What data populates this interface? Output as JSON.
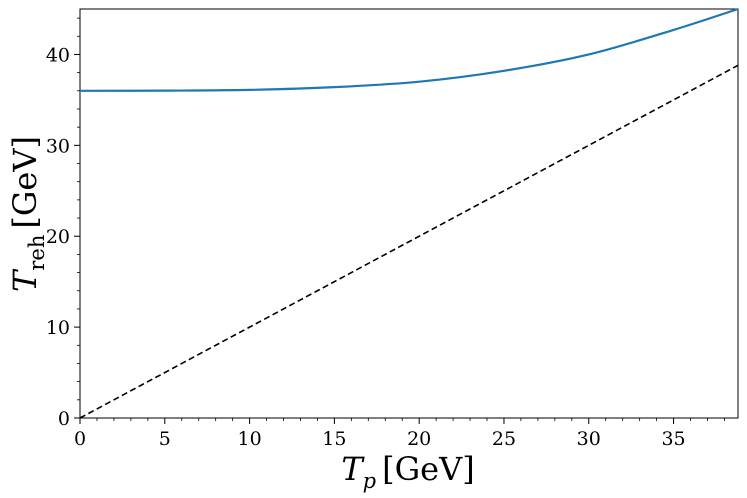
{
  "chart_data": {
    "type": "line",
    "xlabel": {
      "main": "T",
      "sub": "p",
      "unit": "[GeV]"
    },
    "ylabel": {
      "main": "T",
      "sub": "reh",
      "unit": "[GeV]"
    },
    "xlim": [
      0,
      38.8
    ],
    "ylim": [
      0,
      45
    ],
    "xticks": [
      0,
      5,
      10,
      15,
      20,
      25,
      30,
      35
    ],
    "yticks": [
      0,
      10,
      20,
      30,
      40
    ],
    "grid": false,
    "series": [
      {
        "style": "solid",
        "color": "#1f77b4",
        "x": [
          0,
          5,
          10,
          15,
          20,
          25,
          30,
          35,
          38.8
        ],
        "y": [
          36.0,
          36.02,
          36.1,
          36.4,
          37.0,
          38.2,
          40.0,
          42.7,
          45.0
        ]
      },
      {
        "style": "dashed",
        "color": "#000000",
        "x": [
          0,
          38.8
        ],
        "y": [
          0,
          38.8
        ]
      }
    ]
  }
}
